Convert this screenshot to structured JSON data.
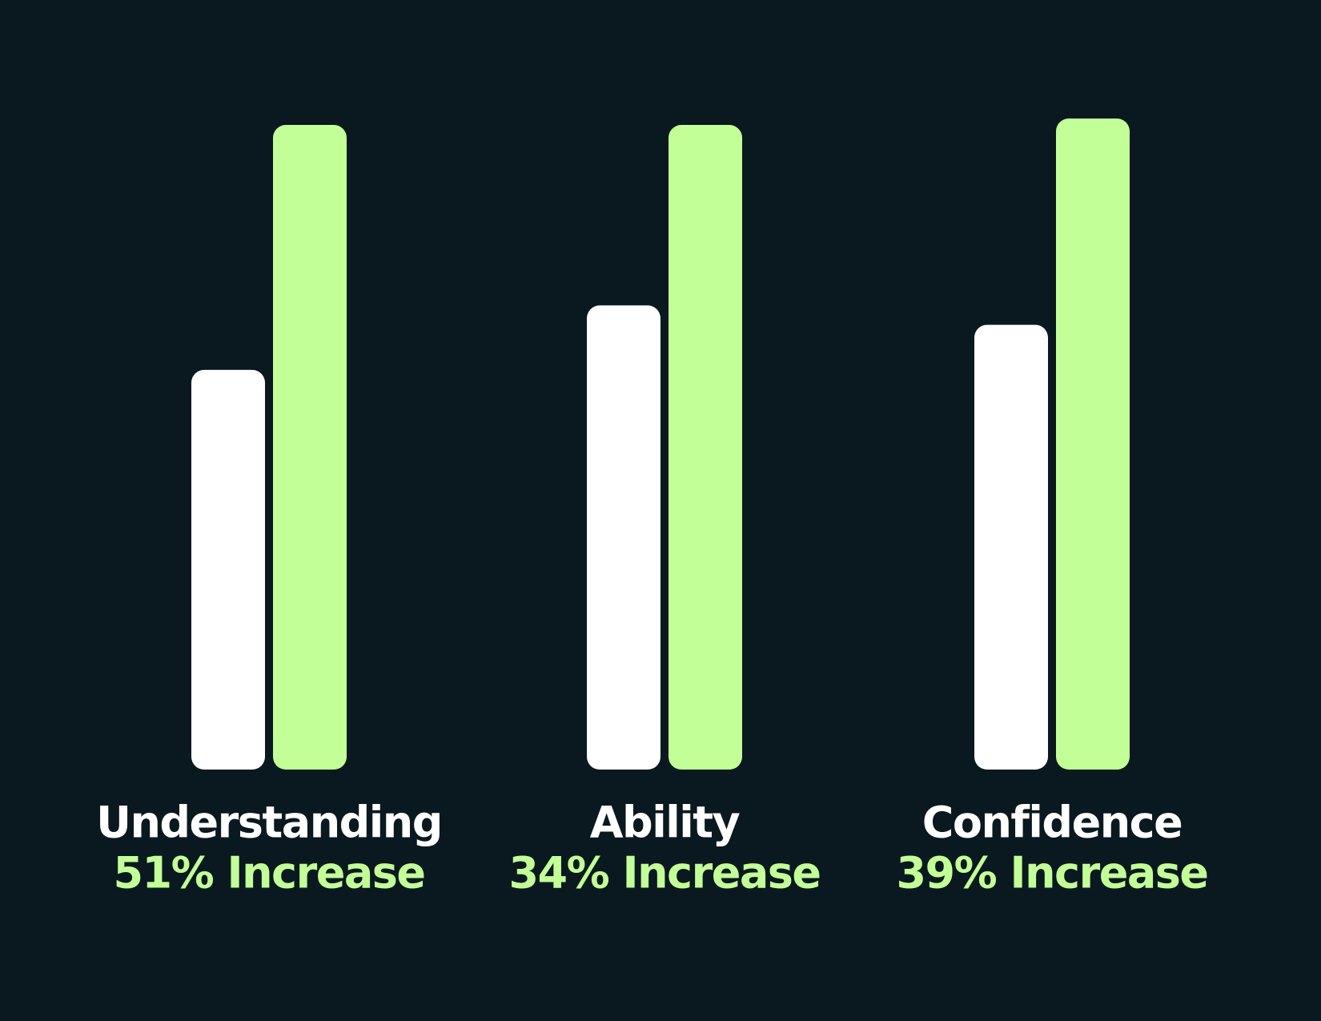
{
  "chart_data": {
    "type": "bar",
    "categories": [
      "Understanding",
      "Ability",
      "Confidence"
    ],
    "increase_labels": [
      "51% Increase",
      "34% Increase",
      "39% Increase"
    ],
    "series": [
      {
        "color": "#ffffff",
        "values": [
          62,
          72,
          69
        ]
      },
      {
        "color": "#c3ff97",
        "values": [
          100,
          100,
          101
        ]
      }
    ],
    "ylim": [
      0,
      101
    ],
    "background": "#0a1920"
  }
}
